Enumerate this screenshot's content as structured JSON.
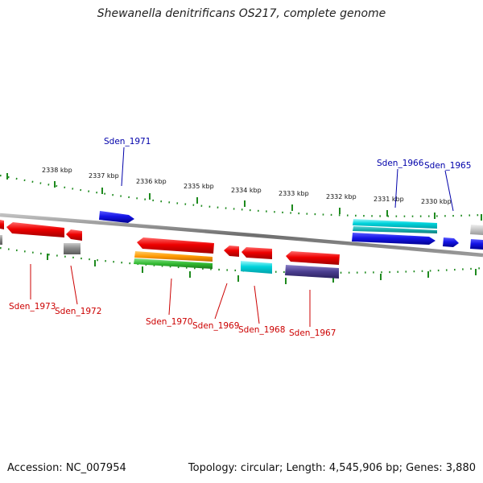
{
  "header": {
    "title": "Shewanella denitrificans OS217, complete genome"
  },
  "footer": {
    "accession": "Accession: NC_007954",
    "summary": "Topology: circular; Length: 4,545,906 bp; Genes: 3,880"
  },
  "scale": {
    "unit": "kbp",
    "ticks": [
      "2338 kbp",
      "2337 kbp",
      "2336 kbp",
      "2335 kbp",
      "2334 kbp",
      "2333 kbp",
      "2332 kbp",
      "2331 kbp",
      "2330 kbp"
    ]
  },
  "genes": {
    "top_strand": [
      "Sden_1971",
      "Sden_1966",
      "Sden_1965"
    ],
    "bottom_strand": [
      "Sden_1973",
      "Sden_1972",
      "Sden_1970",
      "Sden_1969",
      "Sden_1968",
      "Sden_1967"
    ]
  },
  "colors": {
    "backbone": "#7f7f7f",
    "tick": "#1e8a1e",
    "forward_label": "#0000aa",
    "reverse_label": "#cc0000",
    "feature_red": "#ee0000",
    "feature_blue": "#1414e6",
    "feature_cyan": "#00d4dc",
    "feature_teal": "#1ab3b3",
    "feature_gray": "#8c8c8c",
    "feature_orange": "#ff9900",
    "feature_green": "#33bb33",
    "feature_purple": "#4a3d8f"
  }
}
